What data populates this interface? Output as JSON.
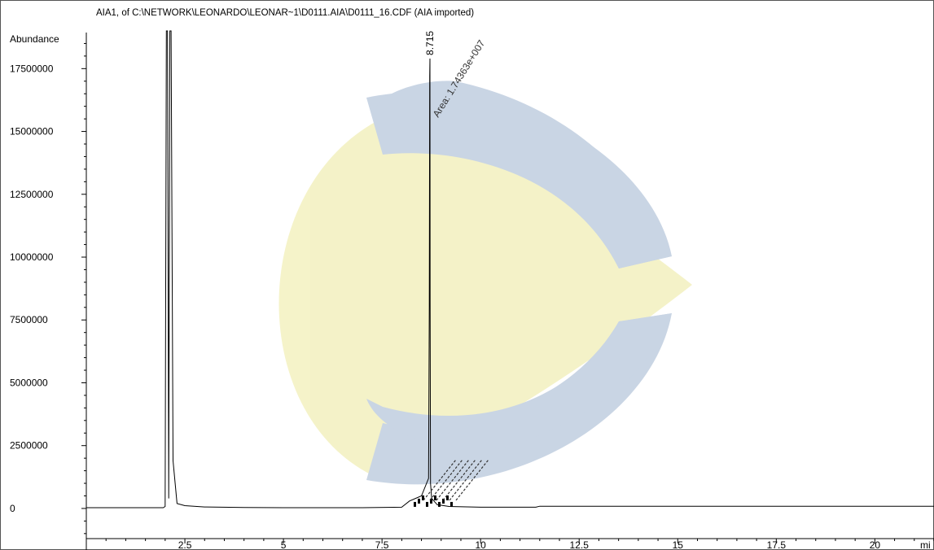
{
  "window": {
    "title": "AIA1, of C:\\NETWORK\\LEONARDO\\LEONAR~1\\D0111.AIA\\D0111_16.CDF (AIA imported)"
  },
  "chart_data": {
    "type": "line",
    "title": "AIA1, of C:\\NETWORK\\LEONARDO\\LEONAR~1\\D0111.AIA\\D0111_16.CDF (AIA imported)",
    "ylabel": "Abundance",
    "xlabel": "mi",
    "xlim": [
      0,
      21.5
    ],
    "ylim": [
      -1200000,
      19000000
    ],
    "x_ticks": [
      2.5,
      5,
      7.5,
      10,
      12.5,
      15,
      17.5,
      20
    ],
    "x_tick_labels": [
      "2.5",
      "5",
      "7.5",
      "10",
      "12.5",
      "15",
      "17.5",
      "20"
    ],
    "y_ticks": [
      0,
      2500000,
      5000000,
      7500000,
      10000000,
      12500000,
      15000000,
      17500000
    ],
    "y_tick_labels": [
      "0",
      "2500000",
      "5000000",
      "7500000",
      "10000000",
      "12500000",
      "15000000",
      "17500000"
    ],
    "grid": false,
    "series": [
      {
        "x": [
          0,
          1.95,
          2.0,
          2.03,
          2.06,
          2.09,
          2.12,
          2.15,
          2.2,
          2.3,
          2.5,
          3.0,
          4.0,
          5.0,
          6.0,
          7.0,
          8.0,
          8.2,
          8.5,
          8.68,
          8.7,
          8.71,
          8.715,
          8.72,
          8.73,
          8.76,
          8.9,
          9.2,
          10.0,
          11.0,
          11.4,
          11.5,
          12.0,
          14.0,
          16.0,
          18.0,
          20.0,
          21.5
        ],
        "y": [
          30000,
          30000,
          80000,
          19000000,
          19000000,
          400000,
          19000000,
          19000000,
          1900000,
          200000,
          110000,
          60000,
          40000,
          30000,
          30000,
          30000,
          50000,
          300000,
          500000,
          1200000,
          8000000,
          17200000,
          17900000,
          8200000,
          1000000,
          400000,
          150000,
          80000,
          50000,
          50000,
          50000,
          90000,
          90000,
          90000,
          90000,
          90000,
          90000,
          90000
        ]
      }
    ],
    "annotations": [
      {
        "x": 8.715,
        "y": 17900000,
        "text": "8.715"
      },
      {
        "x": 8.715,
        "y": 17600000,
        "text": "Area: 1.74363e+007"
      }
    ],
    "minor_peak_labels_note": "cluster of overlapping illegible labels near x=8.3-9.2"
  },
  "watermark": {
    "colors": {
      "arc": "#c7d3e3",
      "wedge": "#f4f2c6"
    }
  }
}
